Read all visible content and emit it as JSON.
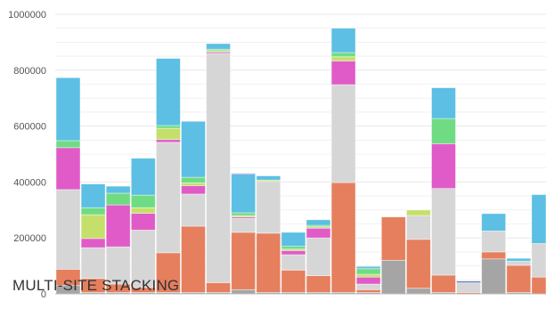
{
  "caption": "MULTI-SITE STACKING",
  "colors": {
    "dark_gray": "#a5a5a5",
    "orange": "#e57f5e",
    "light_gray": "#d6d6d6",
    "pink": "#e05bc8",
    "lime": "#c5e06a",
    "green": "#6fdc84",
    "blue": "#5cbfe3",
    "purple": "#7a62c8",
    "navy": "#3f5fb0",
    "grid": "#e8e8e8",
    "axis": "#bcbcbc"
  },
  "chart_data": {
    "type": "bar",
    "stacked": true,
    "title": "",
    "xlabel": "",
    "ylabel": "",
    "ylim": [
      0,
      1000000
    ],
    "yticks": [
      "0",
      "200000",
      "400000",
      "600000",
      "800000",
      "1000000"
    ],
    "grid": true,
    "series_colors": [
      "dark_gray",
      "orange",
      "light_gray",
      "pink",
      "lime",
      "green",
      "blue",
      "purple",
      "navy"
    ],
    "bars": [
      {
        "segments": [
          30000,
          58000,
          285000,
          150000,
          0,
          25000,
          225000,
          0,
          0
        ]
      },
      {
        "segments": [
          5000,
          50000,
          110000,
          33000,
          85000,
          25000,
          85000,
          0,
          0
        ]
      },
      {
        "segments": [
          5000,
          30000,
          133000,
          150000,
          0,
          42000,
          25000,
          0,
          0
        ]
      },
      {
        "segments": [
          5000,
          18000,
          205000,
          60000,
          20000,
          45000,
          132000,
          0,
          0
        ]
      },
      {
        "segments": [
          5000,
          142000,
          395000,
          10000,
          40000,
          10000,
          240000,
          0,
          0
        ]
      },
      {
        "segments": [
          5000,
          237000,
          115000,
          30000,
          10000,
          20000,
          200000,
          0,
          0
        ]
      },
      {
        "segments": [
          5000,
          35000,
          820000,
          5000,
          5000,
          5000,
          20000,
          0,
          0
        ]
      },
      {
        "segments": [
          15000,
          205000,
          50000,
          5000,
          5000,
          10000,
          138000,
          3000,
          0
        ]
      },
      {
        "segments": [
          5000,
          212000,
          185000,
          0,
          5000,
          0,
          15000,
          0,
          0
        ]
      },
      {
        "segments": [
          5000,
          80000,
          55000,
          15000,
          5000,
          10000,
          50000,
          0,
          0
        ]
      },
      {
        "segments": [
          5000,
          60000,
          135000,
          35000,
          5000,
          5000,
          20000,
          0,
          0
        ]
      },
      {
        "segments": [
          5000,
          393000,
          350000,
          85000,
          15000,
          15000,
          87000,
          0,
          0
        ]
      },
      {
        "segments": [
          5000,
          10000,
          20000,
          25000,
          10000,
          20000,
          8000,
          0,
          0
        ]
      },
      {
        "segments": [
          120000,
          155000,
          0,
          0,
          0,
          0,
          0,
          0,
          0
        ]
      },
      {
        "segments": [
          20000,
          175000,
          85000,
          0,
          20000,
          0,
          0,
          0,
          0
        ]
      },
      {
        "segments": [
          5000,
          62000,
          310000,
          160000,
          0,
          90000,
          110000,
          0,
          0
        ]
      },
      {
        "segments": [
          0,
          5000,
          35000,
          0,
          0,
          0,
          0,
          0,
          5000
        ]
      },
      {
        "segments": [
          125000,
          25000,
          75000,
          0,
          0,
          0,
          62000,
          0,
          0
        ]
      },
      {
        "segments": [
          5000,
          97000,
          15000,
          0,
          0,
          0,
          10000,
          0,
          0
        ]
      },
      {
        "segments": [
          0,
          60000,
          120000,
          0,
          0,
          0,
          175000,
          0,
          0
        ]
      }
    ]
  }
}
